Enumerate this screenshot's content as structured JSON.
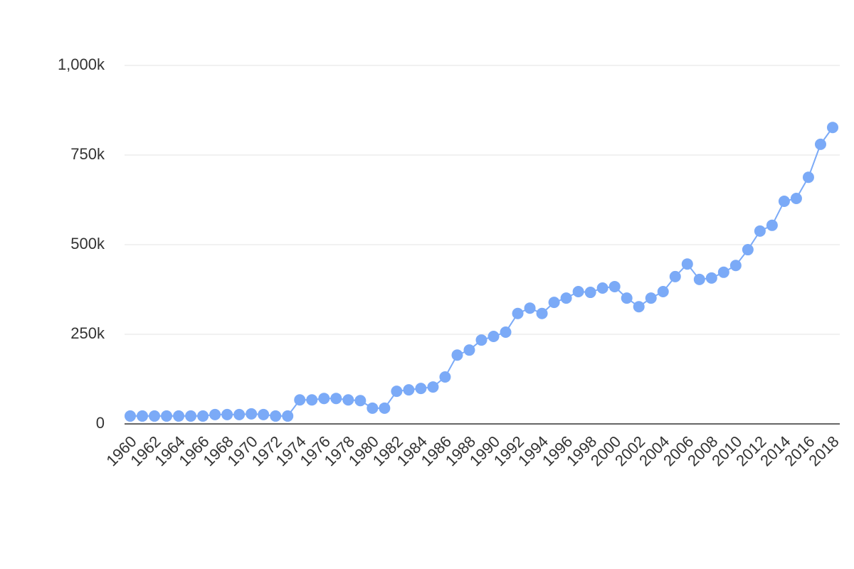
{
  "chart_data": {
    "type": "line",
    "categories": [
      "1960",
      null,
      "1962",
      null,
      "1964",
      null,
      "1966",
      null,
      "1968",
      null,
      "1970",
      null,
      "1972",
      null,
      "1974",
      null,
      "1976",
      null,
      "1978",
      null,
      "1980",
      null,
      "1982",
      null,
      "1984",
      null,
      "1986",
      null,
      "1988",
      null,
      "1990",
      null,
      "1992",
      null,
      "1994",
      null,
      "1996",
      null,
      "1998",
      null,
      "2000",
      null,
      "2002",
      null,
      "2004",
      null,
      "2006",
      null,
      "2008",
      null,
      "2010",
      null,
      "2012",
      null,
      "2014",
      null,
      "2016",
      null,
      "2018"
    ],
    "values": [
      22000,
      22000,
      22000,
      22000,
      22000,
      22000,
      22000,
      26000,
      26000,
      26000,
      28000,
      26000,
      22000,
      22000,
      67000,
      67000,
      71000,
      71000,
      67000,
      65000,
      44000,
      44000,
      91000,
      95000,
      99000,
      103000,
      131000,
      192000,
      206000,
      234000,
      244000,
      256000,
      308000,
      323000,
      308000,
      339000,
      351000,
      369000,
      367000,
      379000,
      383000,
      351000,
      327000,
      351000,
      369000,
      411000,
      446000,
      403000,
      407000,
      423000,
      442000,
      486000,
      538000,
      554000,
      621000,
      629000,
      688000,
      780000,
      827000
    ],
    "color": "#7baaf7",
    "ylim": [
      0,
      1000000
    ],
    "yticks": [
      0,
      {
        "value": 250000,
        "label": "250k"
      },
      {
        "value": 500000,
        "label": "500k"
      },
      {
        "value": 750000,
        "label": "750k"
      },
      {
        "value": 1000000,
        "label": "1,000k"
      }
    ],
    "grid": true
  }
}
